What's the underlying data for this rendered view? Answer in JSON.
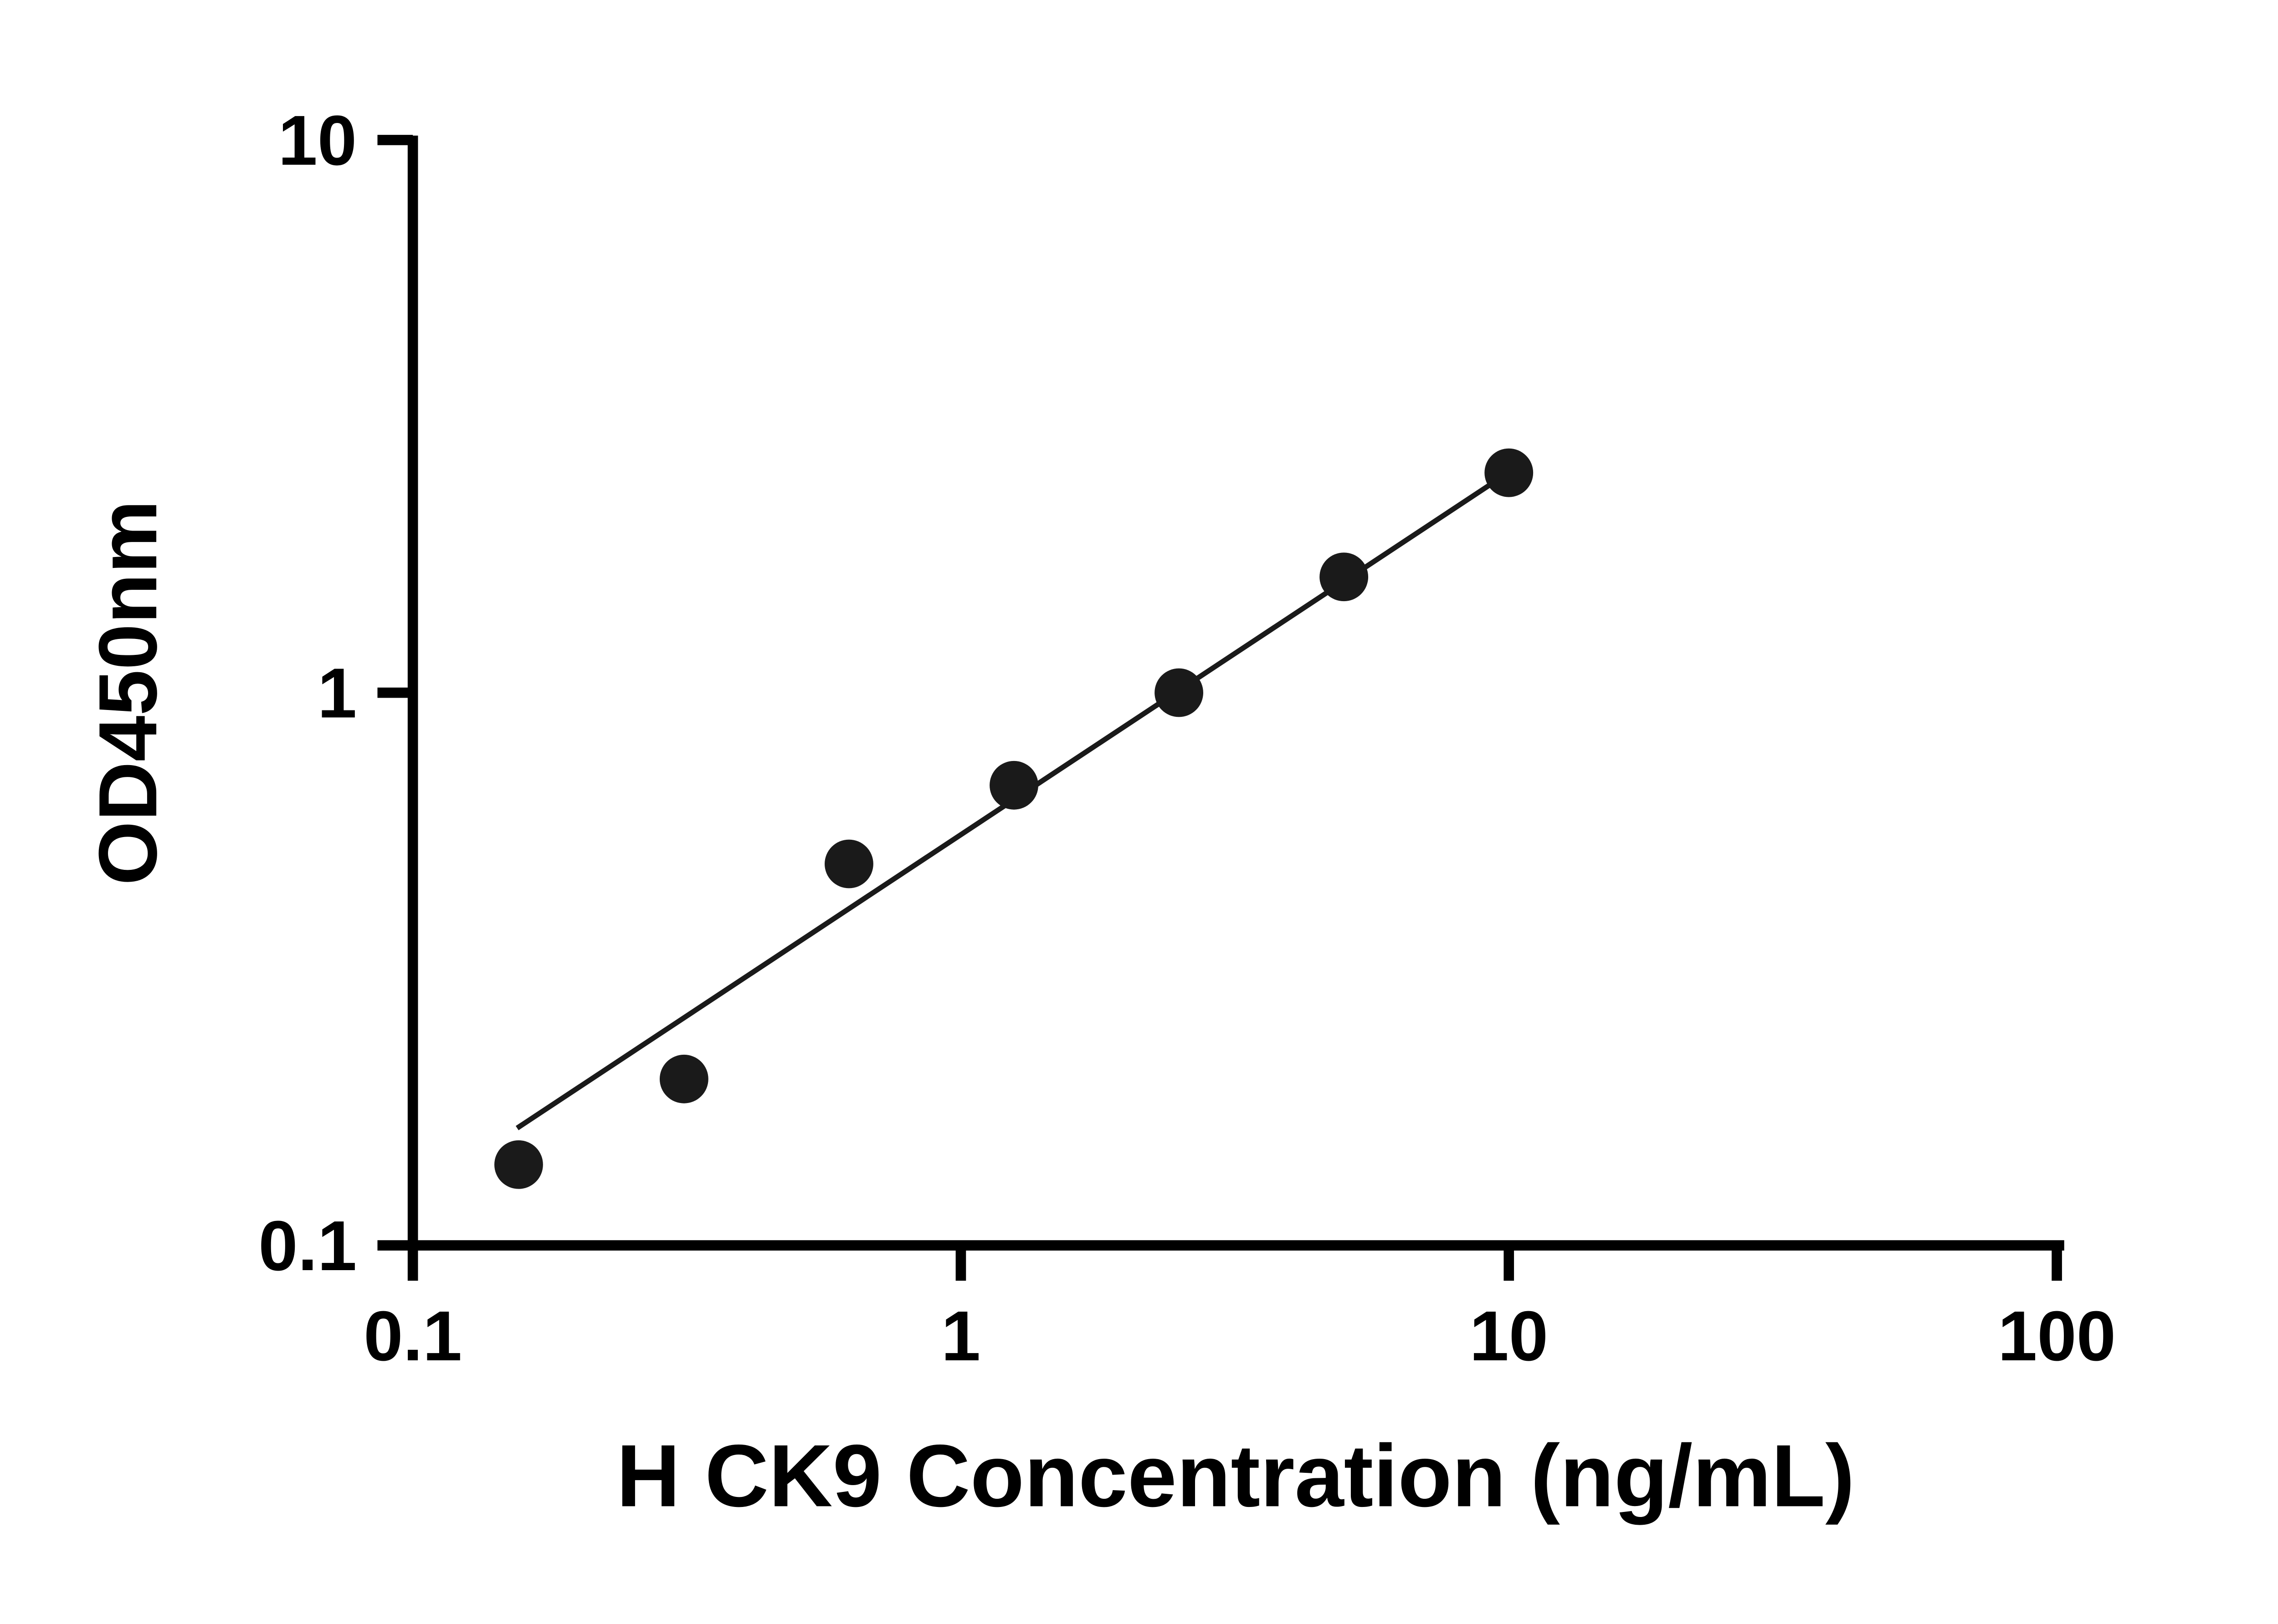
{
  "chart_data": {
    "type": "scatter",
    "title": "",
    "xlabel": "H CK9 Concentration (ng/mL)",
    "ylabel": "OD450nm",
    "x_scale": "log",
    "y_scale": "log",
    "xlim": [
      0.1,
      100
    ],
    "ylim": [
      0.1,
      10
    ],
    "x_ticks": [
      0.1,
      1,
      10,
      100
    ],
    "x_tick_labels": [
      "0.1",
      "1",
      "10",
      "100"
    ],
    "y_ticks": [
      0.1,
      1,
      10
    ],
    "y_tick_labels": [
      "0.1",
      "1",
      "10"
    ],
    "grid": false,
    "legend": false,
    "points": [
      {
        "x": 0.156,
        "y": 0.14
      },
      {
        "x": 0.3125,
        "y": 0.2
      },
      {
        "x": 0.625,
        "y": 0.49
      },
      {
        "x": 1.25,
        "y": 0.68
      },
      {
        "x": 2.5,
        "y": 1.0
      },
      {
        "x": 5.0,
        "y": 1.62
      },
      {
        "x": 10.0,
        "y": 2.5
      }
    ],
    "trendline": {
      "x1": 0.155,
      "y1": 0.163,
      "x2": 10.4,
      "y2": 2.57
    },
    "colors": {
      "axis": "#000000",
      "marker": "#1a1a1a",
      "trendline": "#1a1a1a",
      "background": "#ffffff"
    }
  }
}
